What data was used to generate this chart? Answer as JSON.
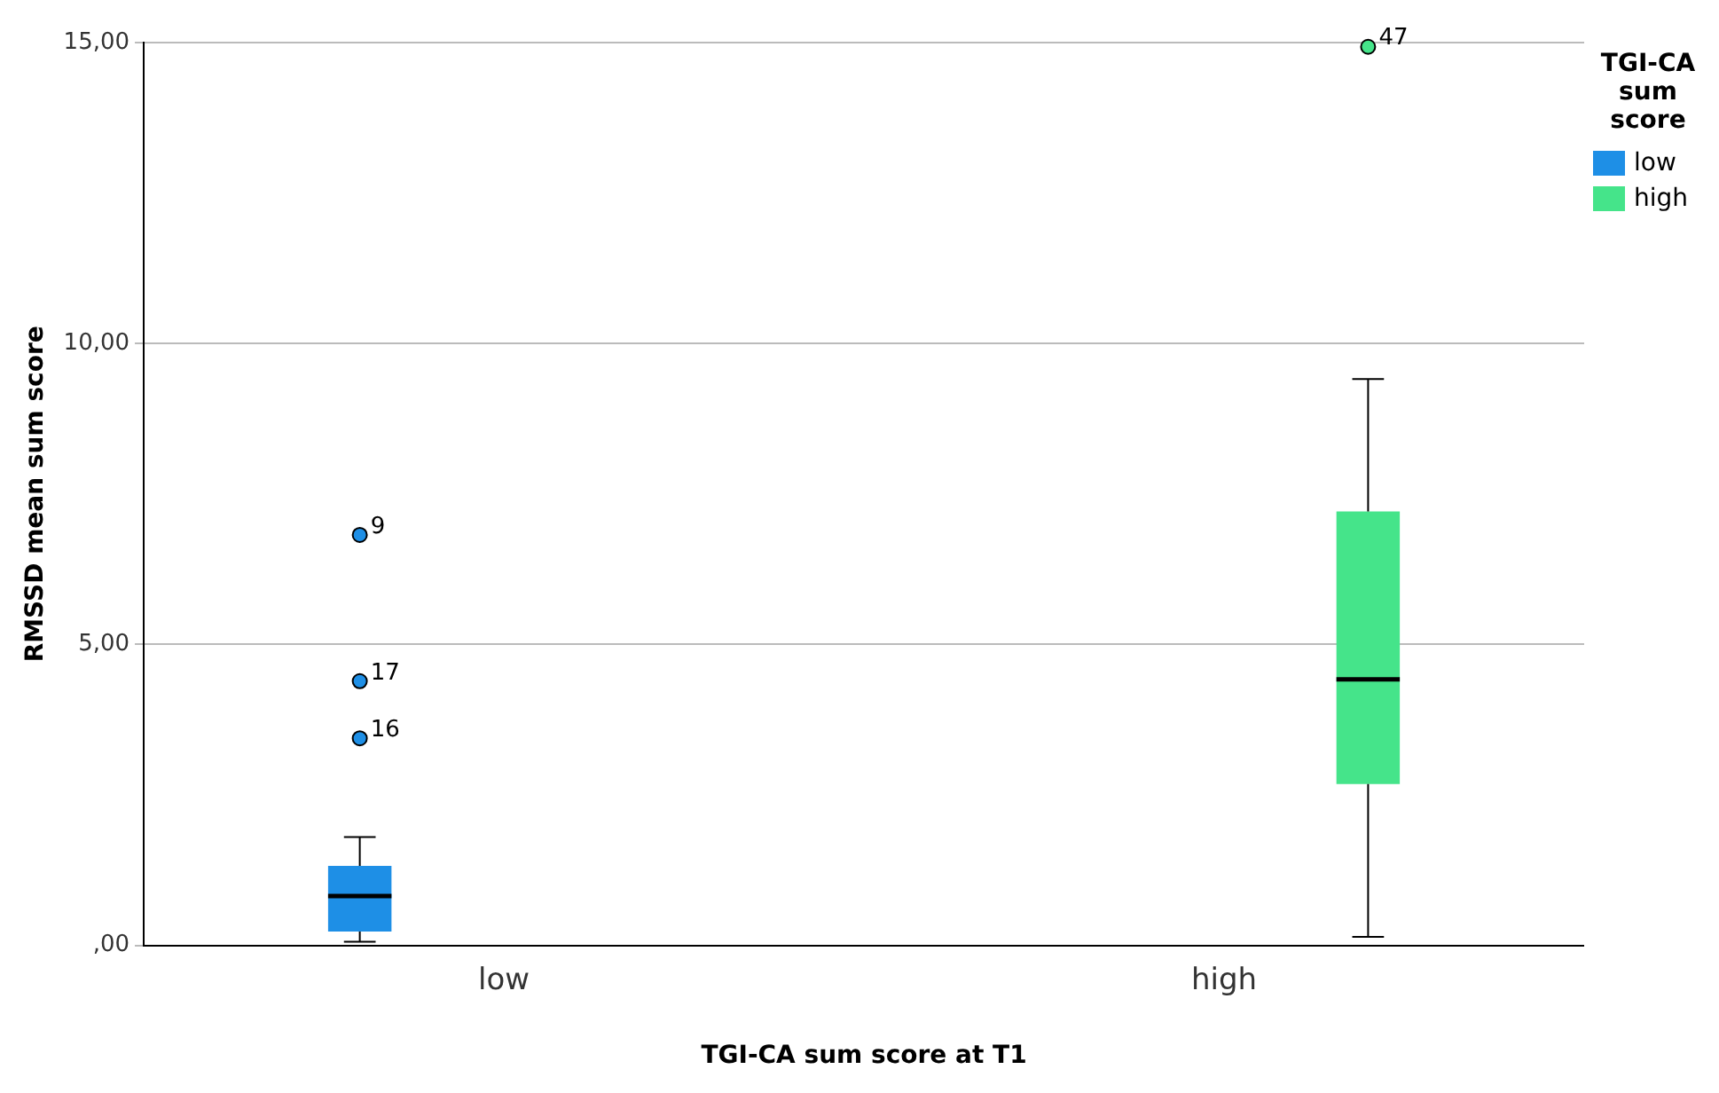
{
  "chart_data": {
    "type": "box",
    "xlabel": "TGI-CA sum score at T1",
    "ylabel": "RMSSD mean sum score",
    "legend_title": "TGI-CA sum score",
    "categories": [
      "low",
      "high"
    ],
    "series": [
      {
        "name": "low",
        "color": "#1e8fe6",
        "boxes": [
          {
            "low": 0.06,
            "q1": 0.23,
            "median": 0.82,
            "q3": 1.32,
            "high": 1.8,
            "outliers": [
              6.82,
              4.39,
              3.44
            ]
          },
          null
        ]
      },
      {
        "name": "high",
        "color": "#45e48a",
        "boxes": [
          null,
          {
            "low": 0.14,
            "q1": 2.68,
            "median": 4.42,
            "q3": 7.21,
            "high": 9.41,
            "outliers": [
              14.93
            ]
          }
        ]
      }
    ],
    "ylim": [
      0,
      15
    ],
    "yticks": [
      {
        "value": 0,
        "label": ",00"
      },
      {
        "value": 5,
        "label": "5,00"
      },
      {
        "value": 10,
        "label": "10,00"
      },
      {
        "value": 15,
        "label": "15,00"
      }
    ],
    "grid": "y",
    "legend": "top right",
    "annotations": [
      "9",
      "17",
      "16",
      "47"
    ]
  }
}
